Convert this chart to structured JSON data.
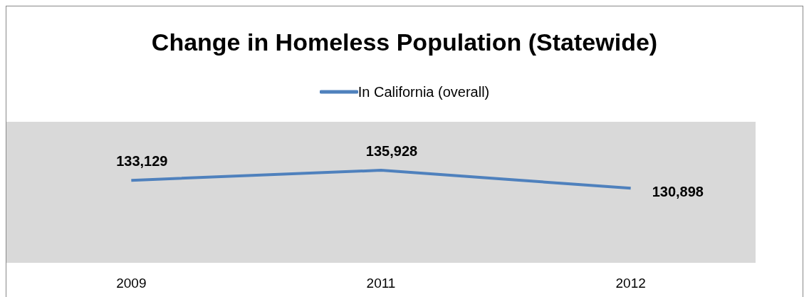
{
  "chart_data": {
    "type": "line",
    "title": "Change in Homeless Population (Statewide)",
    "categories": [
      "2009",
      "2011",
      "2012"
    ],
    "series": [
      {
        "name": "In California (overall)",
        "color": "#4f81bd",
        "values": [
          133129,
          135928,
          130898
        ],
        "value_labels": [
          "133,129",
          "135,928",
          "130,898"
        ]
      }
    ],
    "legend": "top",
    "marker": "none"
  }
}
